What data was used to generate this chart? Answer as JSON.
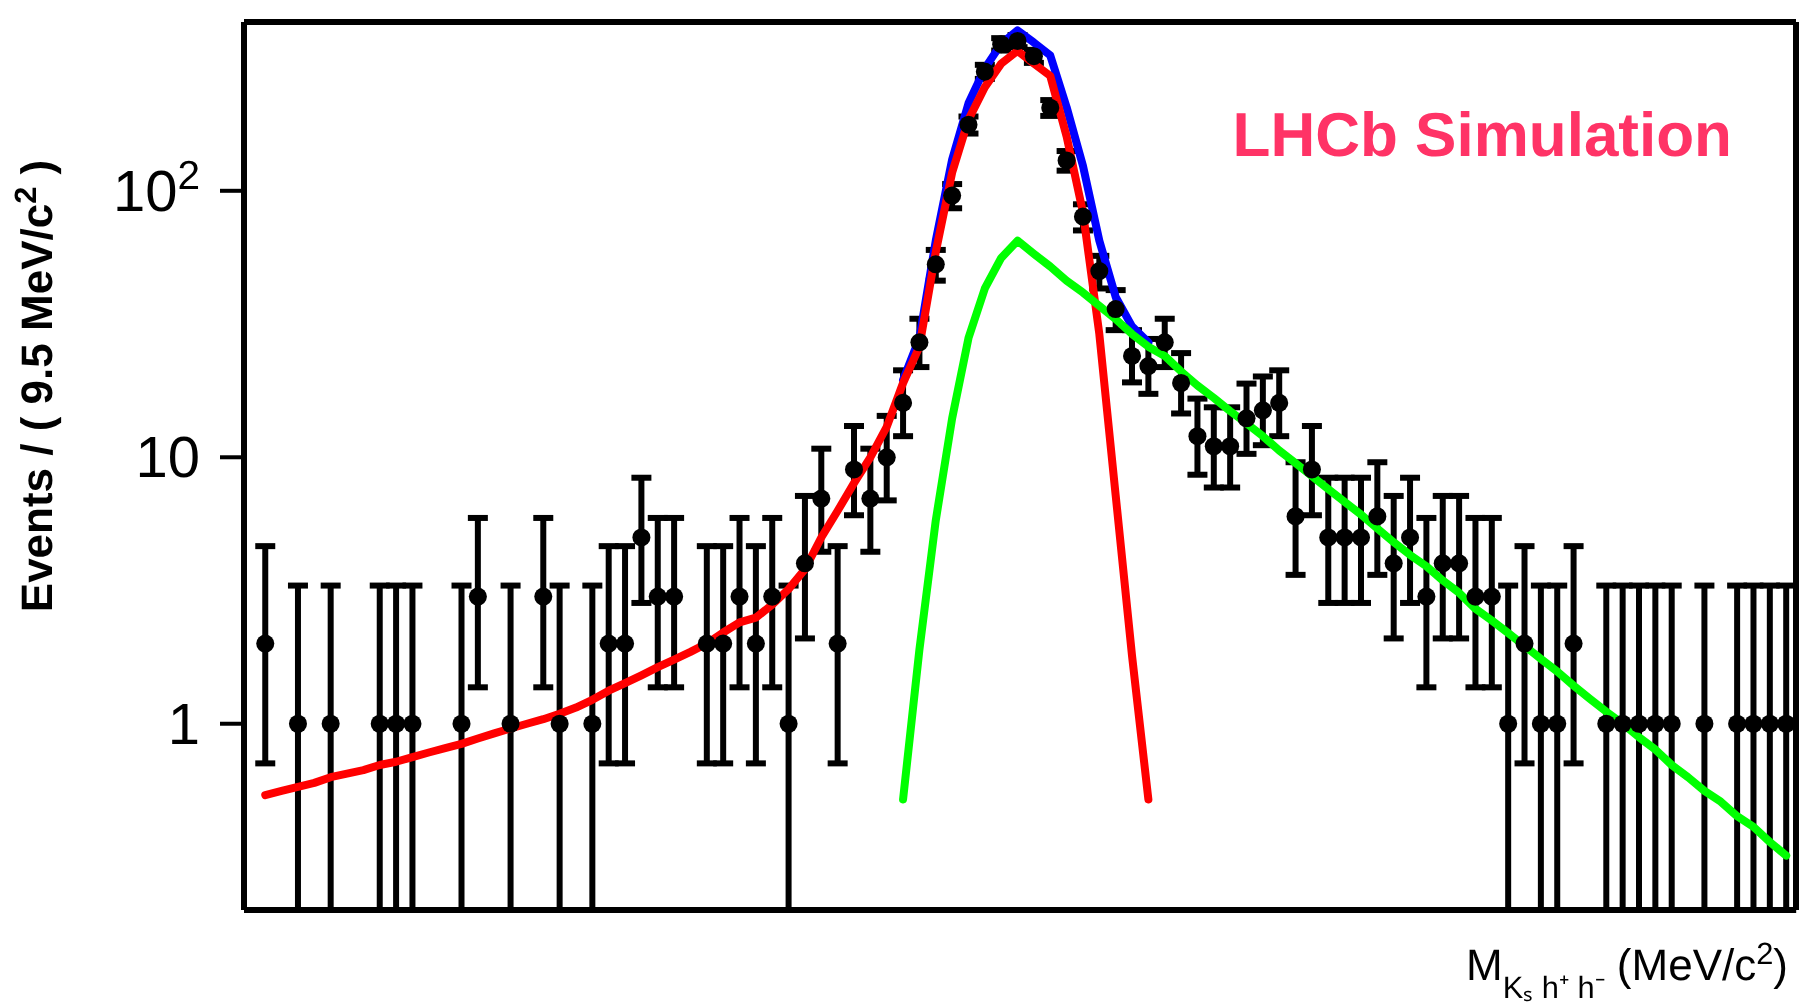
{
  "chart_data": {
    "type": "scatter",
    "xlabel": "M$_{Kₛ h⁺ h⁻}$ (MeV/c$^{2}$)",
    "ylabel": "Events / ( 9.5 MeV/c$^{2}$ )",
    "annotations": [
      "LHCb Simulation"
    ],
    "categories": [
      null,
      null,
      null,
      null,
      null,
      null,
      null,
      null,
      null,
      null,
      null,
      null,
      null,
      null,
      null,
      null,
      null,
      null,
      null,
      null,
      null,
      null,
      null,
      null,
      null,
      null,
      null,
      null,
      null,
      null,
      null,
      null,
      null,
      null,
      null,
      null,
      null,
      null,
      null,
      null,
      null,
      null,
      null,
      null,
      null,
      null,
      null,
      null,
      null,
      null,
      null,
      null,
      null,
      null,
      null,
      null,
      null,
      null,
      null,
      null,
      null,
      null,
      null,
      null,
      null,
      null,
      null,
      null,
      null,
      null,
      null,
      null,
      null,
      null,
      null,
      null,
      null,
      null,
      null,
      null,
      null,
      null,
      null,
      null,
      null,
      null,
      null,
      null,
      null,
      null,
      null,
      null,
      null,
      null
    ],
    "log": "y",
    "ylim": [
      0.2,
      430
    ],
    "yticks": [
      1,
      10,
      {
        "value": 100,
        "label": "10$^{2}$"
      }
    ],
    "tick_labels": "y",
    "grid": false,
    "legend": false,
    "line_style": "solid",
    "series": [
      {
        "marker": "circle",
        "color": "#000000",
        "values": [
          2,
          null,
          1,
          null,
          1,
          null,
          null,
          1,
          1,
          1,
          null,
          null,
          1,
          3,
          null,
          1,
          null,
          3,
          1,
          null,
          1,
          2,
          2,
          5,
          3,
          3,
          null,
          2,
          2,
          3,
          2,
          3,
          1,
          4,
          7,
          2,
          9,
          7,
          10,
          16,
          27,
          53,
          96,
          177,
          280,
          355,
          365,
          320,
          205,
          130,
          80,
          50,
          36,
          24,
          22,
          27,
          19,
          12,
          11,
          11,
          14,
          15,
          16,
          6,
          9,
          5,
          5,
          5,
          6,
          4,
          5,
          3,
          4,
          4,
          3,
          3,
          1,
          2,
          1,
          1,
          2,
          null,
          1,
          1,
          1,
          1,
          1,
          null,
          1,
          null,
          1,
          1,
          1,
          1
        ],
        "errors": [
          [
            0.71,
            4.64
          ],
          null,
          [
            0.2,
            3.3
          ],
          null,
          [
            0.2,
            3.3
          ],
          null,
          null,
          [
            0.2,
            3.3
          ],
          [
            0.2,
            3.3
          ],
          [
            0.2,
            3.3
          ],
          null,
          null,
          [
            0.2,
            3.3
          ],
          [
            1.37,
            5.92
          ],
          null,
          [
            0.2,
            3.3
          ],
          null,
          [
            1.37,
            5.92
          ],
          [
            0.2,
            3.3
          ],
          null,
          [
            0.2,
            3.3
          ],
          [
            0.71,
            4.64
          ],
          [
            0.71,
            4.64
          ],
          [
            2.84,
            8.38
          ],
          [
            1.37,
            5.92
          ],
          [
            1.37,
            5.92
          ],
          null,
          [
            0.71,
            4.64
          ],
          [
            0.71,
            4.64
          ],
          [
            1.37,
            5.92
          ],
          [
            0.71,
            4.64
          ],
          [
            1.37,
            5.92
          ],
          [
            0.2,
            3.3
          ],
          [
            2.09,
            7.16
          ],
          [
            4.42,
            10.77
          ],
          [
            0.71,
            4.64
          ],
          [
            6.06,
            13.1
          ],
          [
            4.42,
            10.77
          ],
          [
            6.89,
            14.3
          ],
          [
            12,
            21.2
          ],
          [
            21.8,
            33.1
          ],
          [
            46,
            60
          ],
          [
            86,
            106
          ],
          [
            164,
            190
          ],
          [
            263,
            297
          ],
          [
            336,
            374
          ],
          [
            346,
            384
          ],
          [
            302,
            338
          ],
          [
            191,
            219
          ],
          [
            119,
            141
          ],
          [
            71,
            89
          ],
          [
            43,
            57
          ],
          [
            30,
            42.4
          ],
          [
            19.1,
            30
          ],
          [
            17.3,
            27.8
          ],
          [
            21.8,
            33.1
          ],
          [
            14.6,
            24.6
          ],
          [
            8.6,
            16.6
          ],
          [
            7.7,
            15.4
          ],
          [
            7.7,
            15.4
          ],
          [
            10.3,
            18.9
          ],
          [
            11.1,
            20.1
          ],
          [
            12,
            21.2
          ],
          [
            3.62,
            9.58
          ],
          [
            6.06,
            13.1
          ],
          [
            2.84,
            8.38
          ],
          [
            2.84,
            8.38
          ],
          [
            2.84,
            8.38
          ],
          [
            3.62,
            9.58
          ],
          [
            2.09,
            7.16
          ],
          [
            2.84,
            8.38
          ],
          [
            1.37,
            5.92
          ],
          [
            2.09,
            7.16
          ],
          [
            2.09,
            7.16
          ],
          [
            1.37,
            5.92
          ],
          [
            1.37,
            5.92
          ],
          [
            0.2,
            3.3
          ],
          [
            0.71,
            4.64
          ],
          [
            0.2,
            3.3
          ],
          [
            0.2,
            3.3
          ],
          [
            0.71,
            4.64
          ],
          null,
          [
            0.2,
            3.3
          ],
          [
            0.2,
            3.3
          ],
          [
            0.2,
            3.3
          ],
          [
            0.2,
            3.3
          ],
          [
            0.2,
            3.3
          ],
          null,
          [
            0.2,
            3.3
          ],
          null,
          [
            0.2,
            3.3
          ],
          [
            0.2,
            3.3
          ],
          [
            0.2,
            3.3
          ],
          [
            0.2,
            3.3
          ]
        ]
      },
      {
        "type": "line",
        "marker": "none",
        "color": "#0000ff",
        "values": [
          null,
          null,
          null,
          null,
          null,
          null,
          null,
          null,
          null,
          null,
          null,
          null,
          null,
          null,
          null,
          null,
          null,
          null,
          null,
          null,
          null,
          null,
          null,
          null,
          null,
          null,
          null,
          null,
          null,
          null,
          null,
          null,
          null,
          null,
          null,
          null,
          null,
          null,
          null,
          19.5,
          28,
          65,
          131,
          213,
          288,
          356,
          400,
          360,
          322,
          206,
          124,
          65,
          40,
          31,
          27,
          null,
          null,
          null,
          null,
          null,
          null,
          null,
          null,
          null,
          null,
          null,
          null,
          null,
          null,
          null,
          null,
          null,
          null,
          null,
          null,
          null,
          null,
          null,
          null,
          null,
          null,
          null,
          null,
          null,
          null,
          null,
          null,
          null,
          null,
          null,
          null,
          null,
          null,
          null
        ]
      },
      {
        "type": "line",
        "marker": "none",
        "color": "#ff0000",
        "values": [
          0.54,
          0.56,
          0.58,
          0.6,
          0.63,
          0.65,
          0.67,
          0.7,
          0.72,
          0.75,
          0.78,
          0.81,
          0.84,
          0.88,
          0.92,
          0.96,
          1.0,
          1.04,
          1.09,
          1.15,
          1.23,
          1.33,
          1.42,
          1.52,
          1.63,
          1.74,
          1.86,
          2.0,
          2.2,
          2.4,
          2.5,
          2.8,
          3.2,
          3.8,
          5.0,
          6.3,
          8,
          10,
          13,
          19,
          26,
          59,
          117,
          185,
          245,
          300,
          335,
          300,
          270,
          160,
          83,
          29,
          7.2,
          1.8,
          0.52,
          null,
          null,
          null,
          null,
          null,
          null,
          null,
          null,
          null,
          null,
          null,
          null,
          null,
          null,
          null,
          null,
          null,
          null,
          null,
          null,
          null,
          null,
          null,
          null,
          null,
          null,
          null,
          null,
          null,
          null,
          null,
          null,
          null,
          null,
          null,
          null,
          null,
          null,
          null
        ]
      },
      {
        "type": "line",
        "marker": "none",
        "color": "#00ff00",
        "values": [
          null,
          null,
          null,
          null,
          null,
          null,
          null,
          null,
          null,
          null,
          null,
          null,
          null,
          null,
          null,
          null,
          null,
          null,
          null,
          null,
          null,
          null,
          null,
          null,
          null,
          null,
          null,
          null,
          null,
          null,
          null,
          null,
          null,
          null,
          null,
          null,
          null,
          null,
          null,
          0.52,
          1.9,
          5.8,
          14,
          28,
          43,
          56,
          65,
          58,
          52,
          46,
          41.5,
          37,
          33,
          29,
          26,
          24,
          21,
          18.6,
          16.7,
          14.9,
          13.4,
          12,
          10.6,
          9.5,
          8.5,
          7.6,
          6.8,
          6.1,
          5.4,
          4.8,
          4.3,
          3.9,
          3.45,
          3.1,
          2.7,
          2.44,
          2.19,
          1.96,
          1.75,
          1.57,
          1.39,
          1.24,
          1.11,
          1.0,
          0.89,
          0.8,
          0.7,
          0.63,
          0.56,
          0.51,
          0.45,
          0.41,
          0.36,
          0.32
        ]
      }
    ]
  }
}
